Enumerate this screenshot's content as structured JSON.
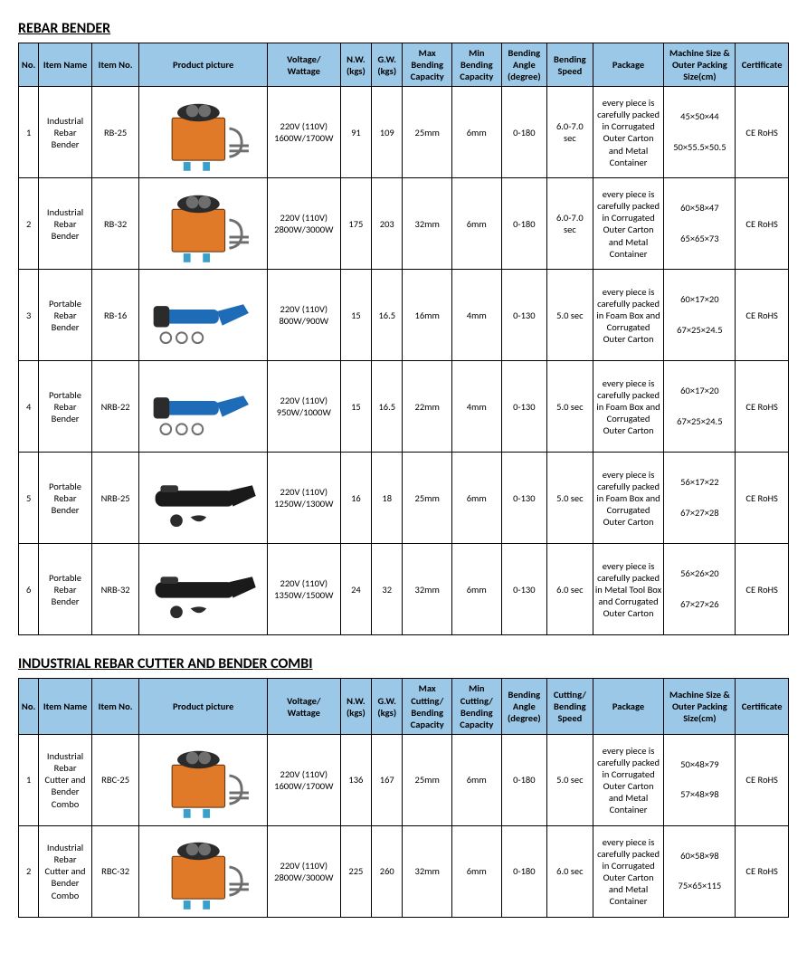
{
  "colors": {
    "header_bg": "#9cc8e8",
    "border": "#000000",
    "text": "#000000",
    "machine_orange": "#e07a28",
    "machine_blue": "#1e6bb8",
    "machine_black": "#1a1a1a",
    "machine_grey": "#6e6e6e"
  },
  "sections": [
    {
      "title": "REBAR BENDER",
      "columns": [
        "No.",
        "Item Name",
        "Item No.",
        "Product picture",
        "Voltage/ Wattage",
        "N.W. (kgs)",
        "G.W. (kgs)",
        "Max Bending Capacity",
        "Min Bending Capacity",
        "Bending Angle (degree)",
        "Bending Speed",
        "Package",
        "Machine Size & Outer Packing Size(cm)",
        "Certificate"
      ],
      "rows": [
        {
          "no": "1",
          "name": "Industrial Rebar Bender",
          "item": "RB-25",
          "pic": "box-orange",
          "vw": "220V (110V) 1600W/1700W",
          "nw": "91",
          "gw": "109",
          "max": "25mm",
          "min": "6mm",
          "ang": "0-180",
          "spd": "6.0-7.0 sec",
          "pkg": "every piece is carefully packed in Corrugated Outer Carton and Metal Container",
          "size1": "45×50×44",
          "size2": "50×55.5×50.5",
          "cert": "CE RoHS"
        },
        {
          "no": "2",
          "name": "Industrial Rebar Bender",
          "item": "RB-32",
          "pic": "box-orange",
          "vw": "220V (110V) 2800W/3000W",
          "nw": "175",
          "gw": "203",
          "max": "32mm",
          "min": "6mm",
          "ang": "0-180",
          "spd": "6.0-7.0 sec",
          "pkg": "every piece is carefully packed in Corrugated Outer Carton and Metal Container",
          "size1": "60×58×47",
          "size2": "65×65×73",
          "cert": "CE RoHS"
        },
        {
          "no": "3",
          "name": "Portable Rebar Bender",
          "item": "RB-16",
          "pic": "tool-blue",
          "vw": "220V (110V) 800W/900W",
          "nw": "15",
          "gw": "16.5",
          "max": "16mm",
          "min": "4mm",
          "ang": "0-130",
          "spd": "5.0 sec",
          "pkg": "every piece is carefully packed in Foam Box and Corrugated Outer Carton",
          "size1": "60×17×20",
          "size2": "67×25×24.5",
          "cert": "CE RoHS"
        },
        {
          "no": "4",
          "name": "Portable Rebar Bender",
          "item": "NRB-22",
          "pic": "tool-blue",
          "vw": "220V (110V) 950W/1000W",
          "nw": "15",
          "gw": "16.5",
          "max": "22mm",
          "min": "4mm",
          "ang": "0-130",
          "spd": "5.0 sec",
          "pkg": "every piece is carefully packed in Foam Box and Corrugated Outer Carton",
          "size1": "60×17×20",
          "size2": "67×25×24.5",
          "cert": "CE RoHS"
        },
        {
          "no": "5",
          "name": "Portable Rebar Bender",
          "item": "NRB-25",
          "pic": "tool-black",
          "vw": "220V (110V) 1250W/1300W",
          "nw": "16",
          "gw": "18",
          "max": "25mm",
          "min": "6mm",
          "ang": "0-130",
          "spd": "5.0 sec",
          "pkg": "every piece is carefully packed in Foam Box and Corrugated Outer Carton",
          "size1": "56×17×22",
          "size2": "67×27×28",
          "cert": "CE RoHS"
        },
        {
          "no": "6",
          "name": "Portable Rebar Bender",
          "item": "NRB-32",
          "pic": "tool-black",
          "vw": "220V (110V) 1350W/1500W",
          "nw": "24",
          "gw": "32",
          "max": "32mm",
          "min": "6mm",
          "ang": "0-130",
          "spd": "6.0 sec",
          "pkg": "every piece is carefully packed in Metal Tool Box and Corrugated Outer Carton",
          "size1": "56×26×20",
          "size2": "67×27×26",
          "cert": "CE RoHS"
        }
      ]
    },
    {
      "title": "INDUSTRIAL REBAR CUTTER AND BENDER COMBI",
      "columns": [
        "No.",
        "Item Name",
        "Item No.",
        "Product picture",
        "Voltage/ Wattage",
        "N.W. (kgs)",
        "G.W. (kgs)",
        "Max Cutting/ Bending Capacity",
        "Min Cutting/ Bending Capacity",
        "Bending Angle (degree)",
        "Cutting/ Bending Speed",
        "Package",
        "Machine Size & Outer Packing Size(cm)",
        "Certificate"
      ],
      "rows": [
        {
          "no": "1",
          "name": "Industrial Rebar Cutter and Bender Combo",
          "item": "RBC-25",
          "pic": "box-orange",
          "vw": "220V (110V) 1600W/1700W",
          "nw": "136",
          "gw": "167",
          "max": "25mm",
          "min": "6mm",
          "ang": "0-180",
          "spd": "5.0 sec",
          "pkg": "every piece is carefully packed in Corrugated Outer Carton and Metal Container",
          "size1": "50×48×79",
          "size2": "57×48×98",
          "cert": "CE RoHS"
        },
        {
          "no": "2",
          "name": "Industrial Rebar Cutter and Bender Combo",
          "item": "RBC-32",
          "pic": "box-orange",
          "vw": "220V (110V) 2800W/3000W",
          "nw": "225",
          "gw": "260",
          "max": "32mm",
          "min": "6mm",
          "ang": "0-180",
          "spd": "6.0 sec",
          "pkg": "every piece is carefully packed in Corrugated Outer Carton and Metal Container",
          "size1": "60×58×98",
          "size2": "75×65×115",
          "cert": "CE RoHS"
        }
      ]
    }
  ]
}
